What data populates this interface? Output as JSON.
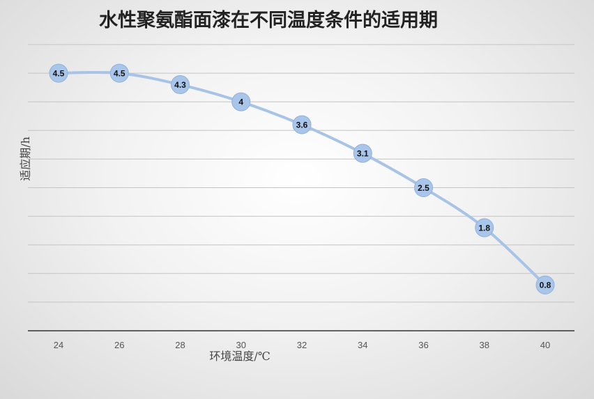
{
  "chart_data": {
    "type": "line",
    "title": "水性聚氨酯面漆在不同温度条件的适用期",
    "xlabel": "环境温度/℃",
    "ylabel": "适应期/h",
    "x": [
      24,
      26,
      28,
      30,
      32,
      34,
      36,
      38,
      40
    ],
    "series": [
      {
        "values": [
          4.5,
          4.5,
          4.3,
          4,
          3.6,
          3.1,
          2.5,
          1.8,
          0.8
        ]
      }
    ],
    "data_labels": [
      "4.5",
      "4.5",
      "4.3",
      "4",
      "3.6",
      "3.1",
      "2.5",
      "1.8",
      "0.8"
    ],
    "x_tick_labels": [
      "24",
      "26",
      "28",
      "30",
      "32",
      "34",
      "36",
      "38",
      "40"
    ],
    "ylim": [
      0,
      5
    ],
    "y_gridline_step": 0.5,
    "grid": true,
    "legend": "none",
    "colors": {
      "line": "#a7c4e6",
      "marker": "#a9c6ea",
      "grid": "#c4c4c4"
    }
  }
}
